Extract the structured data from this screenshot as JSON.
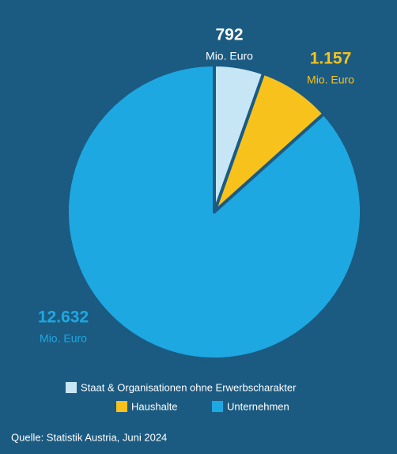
{
  "chart_data": {
    "type": "pie",
    "categories": [
      "Staat & Organisationen ohne Erwerbscharakter",
      "Haushalte",
      "Unternehmen"
    ],
    "values": [
      792,
      1157,
      12632
    ],
    "value_labels": [
      "792",
      "1.157",
      "12.632"
    ],
    "unit": "Mio. Euro",
    "colors": [
      "#c6e6f6",
      "#f8c21c",
      "#1ea8e2"
    ],
    "source": "Quelle: Statistik Austria, Juni 2024"
  }
}
